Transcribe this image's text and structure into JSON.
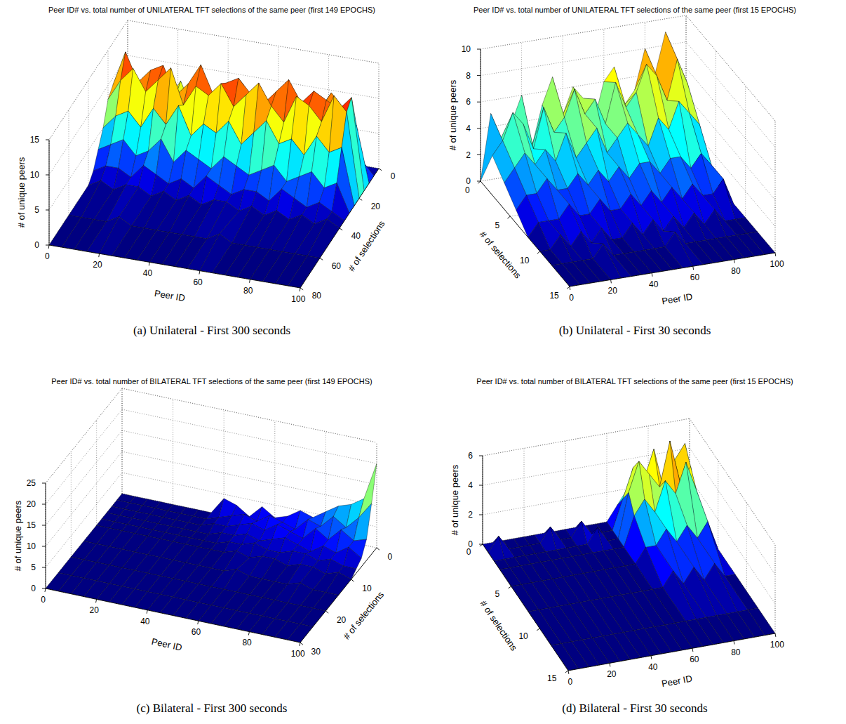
{
  "chart_data": [
    {
      "type": "surface",
      "title": "Peer ID# vs. total number of UNILATERAL TFT selections of the same peer (first 149 EPOCHS)",
      "caption": "(a) Unilateral - First 300 seconds",
      "xlabel": "Peer ID",
      "ylabel": "# of selections",
      "zlabel": "# of unique peers",
      "x": [
        0,
        5,
        10,
        15,
        20,
        25,
        30,
        35,
        40,
        45,
        50,
        55,
        60,
        65,
        70,
        75,
        80,
        85,
        90,
        95,
        100
      ],
      "y": [
        0,
        5,
        10,
        15,
        20,
        25,
        30,
        35,
        40,
        60,
        80
      ],
      "values": [
        [
          0,
          0,
          1,
          0,
          0,
          1,
          0,
          0,
          0,
          1,
          0,
          0,
          0,
          0,
          1,
          0,
          0,
          0,
          0,
          0,
          0
        ],
        [
          2,
          3,
          1,
          4,
          2,
          3,
          2,
          5,
          3,
          2,
          4,
          3,
          2,
          3,
          4,
          2,
          3,
          5,
          3,
          2,
          0
        ],
        [
          5,
          8,
          6,
          9,
          7,
          10,
          6,
          8,
          9,
          7,
          11,
          8,
          7,
          9,
          10,
          8,
          9,
          12,
          10,
          8,
          0
        ],
        [
          9,
          14,
          10,
          12,
          13,
          9,
          11,
          14,
          10,
          12,
          13,
          11,
          10,
          12,
          14,
          11,
          13,
          12,
          11,
          13,
          0
        ],
        [
          8,
          11,
          13,
          10,
          12,
          14,
          9,
          12,
          11,
          13,
          10,
          12,
          14,
          11,
          9,
          13,
          12,
          10,
          14,
          12,
          0
        ],
        [
          5,
          7,
          8,
          6,
          9,
          7,
          10,
          6,
          8,
          7,
          9,
          6,
          8,
          10,
          7,
          8,
          6,
          9,
          7,
          8,
          0
        ],
        [
          3,
          4,
          5,
          3,
          4,
          6,
          3,
          5,
          4,
          3,
          5,
          4,
          3,
          4,
          5,
          3,
          4,
          5,
          3,
          4,
          0
        ],
        [
          1,
          2,
          2,
          1,
          3,
          2,
          1,
          2,
          1,
          3,
          2,
          1,
          2,
          2,
          1,
          3,
          2,
          1,
          2,
          1,
          0
        ],
        [
          0,
          1,
          0,
          1,
          1,
          0,
          1,
          0,
          1,
          0,
          1,
          1,
          0,
          1,
          0,
          1,
          0,
          1,
          0,
          1,
          0
        ],
        [
          0,
          0,
          0,
          0,
          1,
          0,
          0,
          0,
          0,
          0,
          0,
          0,
          1,
          0,
          0,
          0,
          0,
          0,
          0,
          0,
          0
        ],
        [
          0,
          0,
          0,
          0,
          0,
          0,
          0,
          0,
          0,
          0,
          0,
          0,
          0,
          0,
          0,
          0,
          0,
          0,
          0,
          0,
          0
        ]
      ],
      "xlim": [
        0,
        100
      ],
      "xticks": [
        0,
        20,
        40,
        60,
        80,
        100
      ],
      "ylim": [
        0,
        80
      ],
      "yticks": [
        0,
        20,
        40,
        60,
        80
      ],
      "zlim": [
        0,
        15
      ],
      "zticks": [
        0,
        5,
        10,
        15
      ],
      "grid": true,
      "color": "jet"
    },
    {
      "type": "surface",
      "title": "Peer ID# vs. total number of UNILATERAL TFT selections of the same peer (first 15 EPOCHS)",
      "caption": "(b) Unilateral - First 30 seconds",
      "xlabel": "Peer ID",
      "ylabel": "# of selections",
      "zlabel": "# of unique peers",
      "x": [
        0,
        5,
        10,
        15,
        20,
        25,
        30,
        35,
        40,
        45,
        50,
        55,
        60,
        65,
        70,
        75,
        80,
        85,
        90,
        95,
        100
      ],
      "y": [
        0,
        2,
        4,
        6,
        8,
        10,
        12,
        15
      ],
      "values": [
        [
          0,
          5,
          3,
          4,
          6,
          2,
          5,
          7,
          4,
          6,
          5,
          3,
          6,
          7,
          4,
          5,
          8,
          6,
          9,
          7,
          0
        ],
        [
          3,
          4,
          6,
          5,
          3,
          6,
          4,
          5,
          7,
          5,
          6,
          4,
          7,
          5,
          6,
          8,
          7,
          5,
          8,
          6,
          0
        ],
        [
          2,
          3,
          4,
          3,
          4,
          3,
          5,
          3,
          4,
          5,
          3,
          4,
          5,
          4,
          3,
          5,
          4,
          6,
          5,
          4,
          0
        ],
        [
          1,
          2,
          2,
          3,
          2,
          2,
          3,
          2,
          3,
          2,
          3,
          2,
          3,
          3,
          2,
          3,
          3,
          2,
          3,
          2,
          0
        ],
        [
          0,
          1,
          1,
          1,
          2,
          1,
          1,
          2,
          1,
          1,
          2,
          1,
          2,
          1,
          2,
          1,
          2,
          1,
          1,
          2,
          0
        ],
        [
          0,
          0,
          1,
          0,
          1,
          0,
          1,
          0,
          0,
          1,
          0,
          1,
          0,
          1,
          0,
          1,
          0,
          1,
          0,
          0,
          0
        ],
        [
          0,
          0,
          0,
          0,
          0,
          1,
          0,
          0,
          0,
          0,
          0,
          0,
          1,
          0,
          0,
          0,
          0,
          0,
          0,
          0,
          0
        ],
        [
          0,
          0,
          0,
          0,
          0,
          0,
          0,
          0,
          0,
          0,
          0,
          0,
          0,
          0,
          0,
          0,
          0,
          0,
          0,
          0,
          0
        ]
      ],
      "xlim": [
        0,
        100
      ],
      "xticks": [
        0,
        20,
        40,
        60,
        80,
        100
      ],
      "ylim": [
        0,
        15
      ],
      "yticks": [
        0,
        5,
        10,
        15
      ],
      "zlim": [
        0,
        10
      ],
      "zticks": [
        0,
        2,
        4,
        6,
        8,
        10
      ],
      "grid": true,
      "color": "jet"
    },
    {
      "type": "surface",
      "title": "Peer ID# vs. total number of BILATERAL TFT selections of the same peer (first 149 EPOCHS)",
      "caption": "(c) Bilateral - First 300 seconds",
      "xlabel": "Peer ID",
      "ylabel": "# of selections",
      "zlabel": "# of unique peers",
      "x": [
        0,
        5,
        10,
        15,
        20,
        25,
        30,
        35,
        40,
        45,
        50,
        55,
        60,
        65,
        70,
        75,
        80,
        85,
        90,
        95,
        100
      ],
      "y": [
        0,
        2,
        4,
        6,
        8,
        10,
        15,
        20,
        25,
        30
      ],
      "values": [
        [
          0,
          0,
          0,
          0,
          0,
          0,
          0,
          0,
          4,
          3,
          1,
          4,
          2,
          3,
          5,
          4,
          6,
          8,
          9,
          11,
          20
        ],
        [
          0,
          0,
          0,
          0,
          0,
          0,
          0,
          0,
          1,
          2,
          3,
          2,
          4,
          3,
          2,
          5,
          4,
          7,
          5,
          8,
          12
        ],
        [
          0,
          0,
          0,
          0,
          0,
          0,
          0,
          0,
          1,
          1,
          2,
          3,
          2,
          4,
          3,
          2,
          5,
          3,
          6,
          4,
          5
        ],
        [
          0,
          0,
          0,
          0,
          0,
          0,
          0,
          0,
          0,
          1,
          1,
          2,
          1,
          2,
          3,
          2,
          1,
          3,
          2,
          4,
          2
        ],
        [
          0,
          0,
          0,
          0,
          0,
          0,
          0,
          0,
          0,
          0,
          1,
          1,
          2,
          1,
          1,
          2,
          2,
          1,
          2,
          1,
          1
        ],
        [
          0,
          0,
          0,
          0,
          0,
          0,
          0,
          0,
          0,
          0,
          0,
          1,
          0,
          1,
          1,
          0,
          1,
          1,
          0,
          1,
          0
        ],
        [
          0,
          0,
          0,
          0,
          0,
          0,
          0,
          0,
          0,
          0,
          0,
          0,
          1,
          0,
          0,
          0,
          0,
          1,
          0,
          0,
          0
        ],
        [
          0,
          0,
          0,
          0,
          0,
          0,
          0,
          0,
          0,
          0,
          0,
          0,
          0,
          0,
          0,
          0,
          0,
          0,
          0,
          0,
          0
        ],
        [
          0,
          0,
          0,
          0,
          0,
          0,
          0,
          0,
          0,
          0,
          0,
          0,
          0,
          0,
          0,
          0,
          0,
          0,
          0,
          0,
          0
        ],
        [
          0,
          0,
          0,
          0,
          0,
          0,
          0,
          0,
          0,
          0,
          0,
          0,
          0,
          0,
          0,
          0,
          0,
          0,
          0,
          0,
          0
        ]
      ],
      "xlim": [
        0,
        100
      ],
      "xticks": [
        0,
        20,
        40,
        60,
        80,
        100
      ],
      "ylim": [
        0,
        30
      ],
      "yticks": [
        0,
        10,
        20,
        30
      ],
      "zlim": [
        0,
        25
      ],
      "zticks": [
        0,
        5,
        10,
        15,
        20,
        25
      ],
      "grid": true,
      "color": "jet"
    },
    {
      "type": "surface",
      "title": "Peer ID# vs. total number of BILATERAL TFT selections of the same peer (first 15 EPOCHS)",
      "caption": "(d) Bilateral - First 30 seconds",
      "xlabel": "Peer ID",
      "ylabel": "# of selections",
      "zlabel": "# of unique peers",
      "x": [
        0,
        5,
        10,
        15,
        20,
        25,
        30,
        35,
        40,
        45,
        50,
        55,
        60,
        65,
        70,
        75,
        80,
        85,
        90,
        95,
        100
      ],
      "y": [
        0,
        1,
        2,
        3,
        5,
        8,
        12,
        15
      ],
      "values": [
        [
          0,
          0,
          0,
          0,
          0,
          0,
          0,
          0,
          0,
          0,
          0,
          0,
          0,
          1,
          2,
          1,
          3,
          2,
          1,
          2,
          0
        ],
        [
          0,
          1,
          0,
          0,
          0,
          0,
          1,
          0,
          0,
          1,
          0,
          0,
          0,
          2,
          4,
          3,
          5,
          2,
          4,
          5,
          0
        ],
        [
          0,
          0,
          0,
          0,
          0,
          0,
          0,
          0,
          0,
          0,
          1,
          0,
          0,
          3,
          5,
          4,
          3,
          6,
          3,
          4,
          0
        ],
        [
          0,
          0,
          0,
          0,
          0,
          0,
          0,
          0,
          0,
          0,
          0,
          0,
          0,
          2,
          3,
          2,
          4,
          3,
          5,
          3,
          0
        ],
        [
          0,
          0,
          0,
          0,
          0,
          0,
          0,
          0,
          0,
          0,
          0,
          0,
          0,
          1,
          1,
          2,
          1,
          2,
          1,
          2,
          0
        ],
        [
          0,
          0,
          0,
          0,
          0,
          0,
          0,
          0,
          0,
          0,
          0,
          0,
          0,
          0,
          1,
          0,
          1,
          0,
          1,
          0,
          0
        ],
        [
          0,
          0,
          0,
          0,
          0,
          0,
          0,
          0,
          0,
          0,
          0,
          0,
          0,
          0,
          0,
          0,
          0,
          0,
          0,
          0,
          0
        ],
        [
          0,
          0,
          0,
          0,
          0,
          0,
          0,
          0,
          0,
          0,
          0,
          0,
          0,
          0,
          0,
          0,
          0,
          0,
          0,
          0,
          0
        ]
      ],
      "xlim": [
        0,
        100
      ],
      "xticks": [
        0,
        20,
        40,
        60,
        80,
        100
      ],
      "ylim": [
        0,
        15
      ],
      "yticks": [
        0,
        5,
        10,
        15
      ],
      "zlim": [
        0,
        6
      ],
      "zticks": [
        0,
        2,
        4,
        6
      ],
      "grid": true,
      "color": "jet"
    }
  ]
}
